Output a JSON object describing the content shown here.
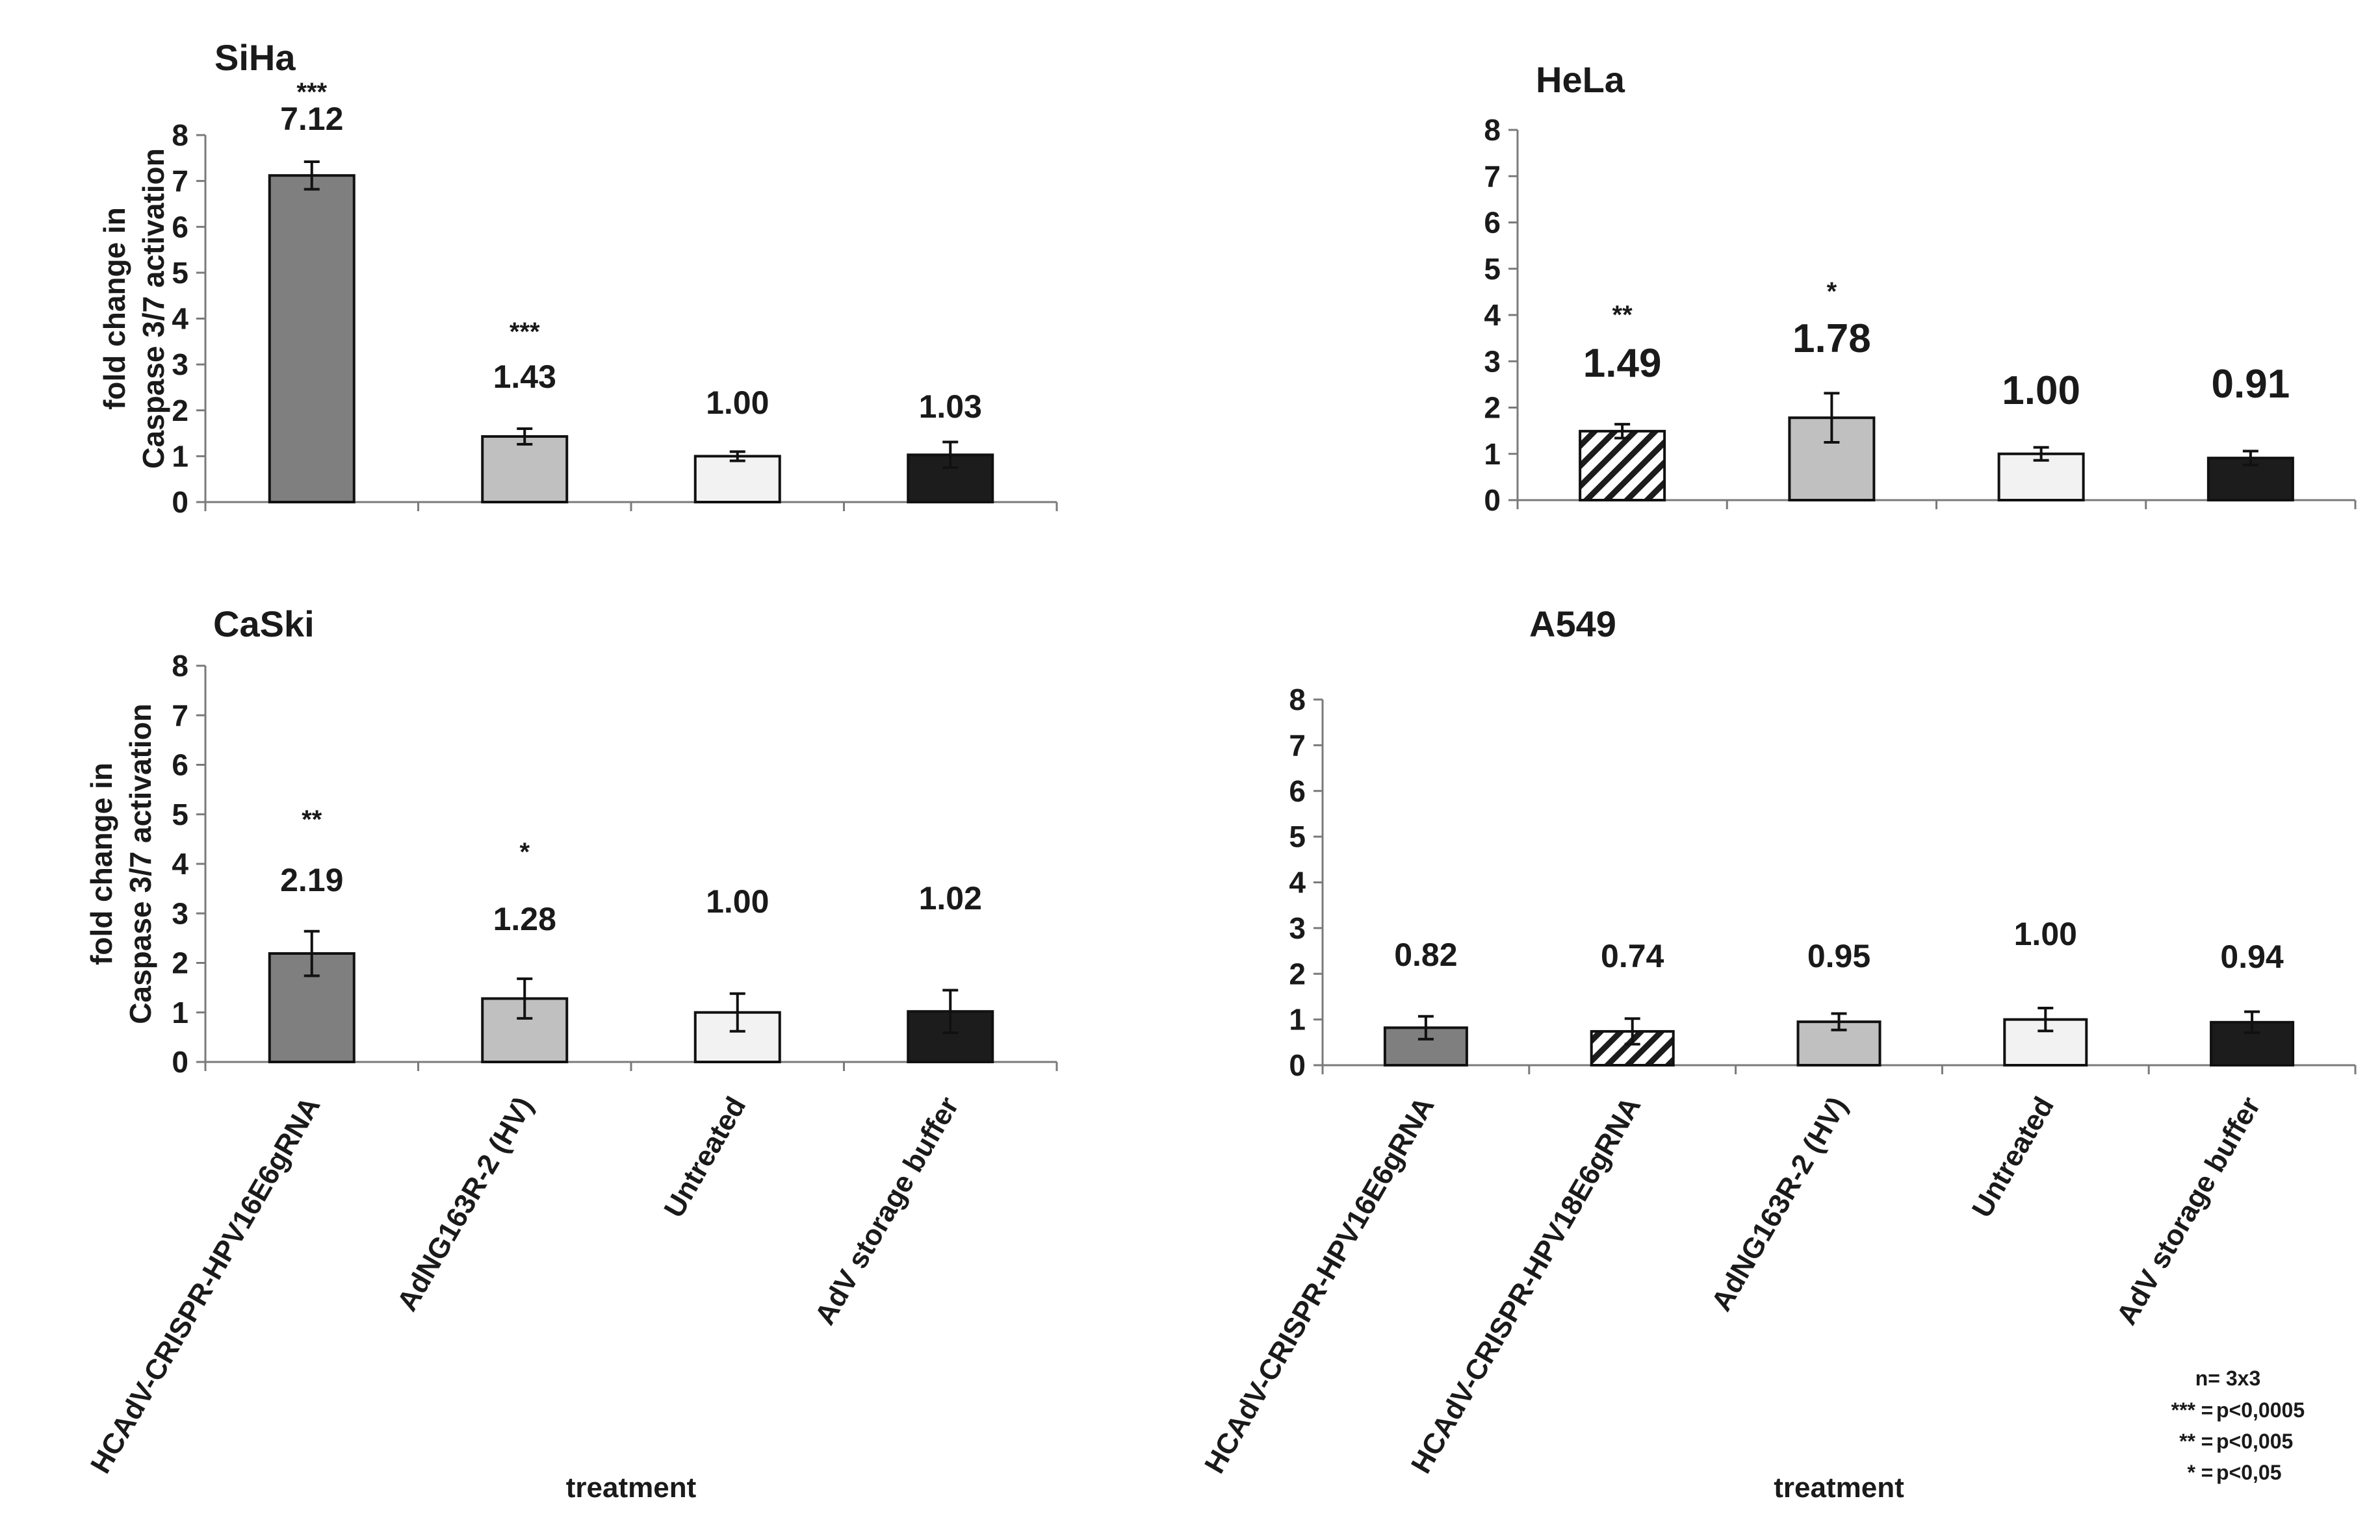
{
  "colors": {
    "dark_gray": "#7f7f7f",
    "light_gray": "#c0c0c0",
    "very_light_gray": "#f2f2f2",
    "black": "#1c1c1c",
    "hatch": "#1c1c1c"
  },
  "chart_data": [
    {
      "id": "siha",
      "type": "bar",
      "title": "SiHa",
      "ylabel": [
        "fold change in",
        "Caspase 3/7 activation"
      ],
      "xlabel": "",
      "ylim": [
        0,
        8
      ],
      "yticks": [
        0,
        1,
        2,
        3,
        4,
        5,
        6,
        7,
        8
      ],
      "categories": [],
      "bars": [
        {
          "value": 7.12,
          "error": 0.3,
          "label": "7.12",
          "stars": "***",
          "fill": "dark_gray"
        },
        {
          "value": 1.43,
          "error": 0.17,
          "label": "1.43",
          "stars": "***",
          "fill": "light_gray"
        },
        {
          "value": 1.0,
          "error": 0.1,
          "label": "1.00",
          "stars": "",
          "fill": "very_light_gray"
        },
        {
          "value": 1.03,
          "error": 0.28,
          "label": "1.03",
          "stars": "",
          "fill": "black"
        }
      ]
    },
    {
      "id": "hela",
      "type": "bar",
      "title": "HeLa",
      "ylabel": [],
      "xlabel": "",
      "ylim": [
        0,
        8
      ],
      "yticks": [
        0,
        1,
        2,
        3,
        4,
        5,
        6,
        7,
        8
      ],
      "categories": [],
      "bars": [
        {
          "value": 1.49,
          "error": 0.15,
          "label": "1.49",
          "stars": "**",
          "fill": "hatch"
        },
        {
          "value": 1.78,
          "error": 0.53,
          "label": "1.78",
          "stars": "*",
          "fill": "light_gray"
        },
        {
          "value": 1.0,
          "error": 0.14,
          "label": "1.00",
          "stars": "",
          "fill": "very_light_gray"
        },
        {
          "value": 0.91,
          "error": 0.15,
          "label": "0.91",
          "stars": "",
          "fill": "black"
        }
      ]
    },
    {
      "id": "caski",
      "type": "bar",
      "title": "CaSki",
      "ylabel": [
        "fold change in",
        "Caspase 3/7 activation"
      ],
      "xlabel": "treatment",
      "ylim": [
        0,
        8
      ],
      "yticks": [
        0,
        1,
        2,
        3,
        4,
        5,
        6,
        7,
        8
      ],
      "categories": [
        "HCAdV-CRISPR-HPV16E6gRNA",
        "AdNG163R-2 (HV)",
        "Untreated",
        "AdV storage buffer"
      ],
      "bars": [
        {
          "value": 2.19,
          "error": 0.45,
          "label": "2.19",
          "stars": "**",
          "fill": "dark_gray"
        },
        {
          "value": 1.28,
          "error": 0.4,
          "label": "1.28",
          "stars": "*",
          "fill": "light_gray"
        },
        {
          "value": 1.0,
          "error": 0.38,
          "label": "1.00",
          "stars": "",
          "fill": "very_light_gray"
        },
        {
          "value": 1.02,
          "error": 0.43,
          "label": "1.02",
          "stars": "",
          "fill": "black"
        }
      ]
    },
    {
      "id": "a549",
      "type": "bar",
      "title": "A549",
      "ylabel": [],
      "xlabel": "treatment",
      "ylim": [
        0,
        8
      ],
      "yticks": [
        0,
        1,
        2,
        3,
        4,
        5,
        6,
        7,
        8
      ],
      "categories": [
        "HCAdV-CRISPR-HPV16E6gRNA",
        "HCAdV-CRISPR-HPV18E6gRNA",
        "AdNG163R-2 (HV)",
        "Untreated",
        "AdV storage buffer"
      ],
      "bars": [
        {
          "value": 0.82,
          "error": 0.25,
          "label": "0.82",
          "stars": "",
          "fill": "dark_gray"
        },
        {
          "value": 0.74,
          "error": 0.28,
          "label": "0.74",
          "stars": "",
          "fill": "hatch"
        },
        {
          "value": 0.95,
          "error": 0.18,
          "label": "0.95",
          "stars": "",
          "fill": "light_gray"
        },
        {
          "value": 1.0,
          "error": 0.25,
          "label": "1.00",
          "stars": "",
          "fill": "very_light_gray"
        },
        {
          "value": 0.94,
          "error": 0.23,
          "label": "0.94",
          "stars": "",
          "fill": "black"
        }
      ]
    }
  ],
  "legend_note": {
    "n": "n= 3x3",
    "lines": [
      {
        "stars": "***",
        "text": "p<0,0005"
      },
      {
        "stars": "**",
        "text": "p<0,005"
      },
      {
        "stars": "*",
        "text": "p<0,05"
      }
    ]
  }
}
